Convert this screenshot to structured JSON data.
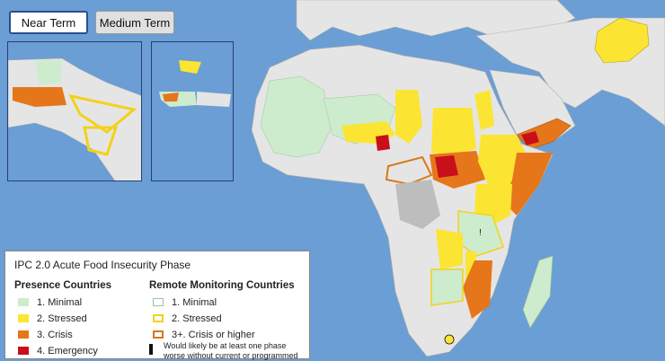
{
  "tabs": {
    "near_term": "Near Term",
    "medium_term": "Medium Term"
  },
  "colors": {
    "water": "#6a9ed4",
    "land": "#e5e5e5",
    "minimal": "#cdeccd",
    "stressed": "#fbe532",
    "crisis": "#e6761a",
    "emergency": "#c8101a",
    "no_data": "#bdbdbd",
    "remote_border_stressed": "#f2d21a",
    "remote_border_crisis": "#d9781a"
  },
  "legend": {
    "title": "IPC 2.0 Acute Food Insecurity Phase",
    "presence_heading": "Presence Countries",
    "remote_heading": "Remote Monitoring Countries",
    "presence_items": [
      {
        "label": "1. Minimal",
        "color": "#cdeccd"
      },
      {
        "label": "2. Stressed",
        "color": "#fbe532"
      },
      {
        "label": "3. Crisis",
        "color": "#e6761a"
      },
      {
        "label": "4. Emergency",
        "color": "#c8101a"
      }
    ],
    "remote_items": [
      {
        "label": "1. Minimal",
        "color": "#cdeccd"
      },
      {
        "label": "2. Stressed",
        "color": "#f2d21a"
      },
      {
        "label": "3+. Crisis or higher",
        "color": "#d9781a"
      }
    ],
    "note": "Would likely be at least one phase worse without current or programmed"
  }
}
